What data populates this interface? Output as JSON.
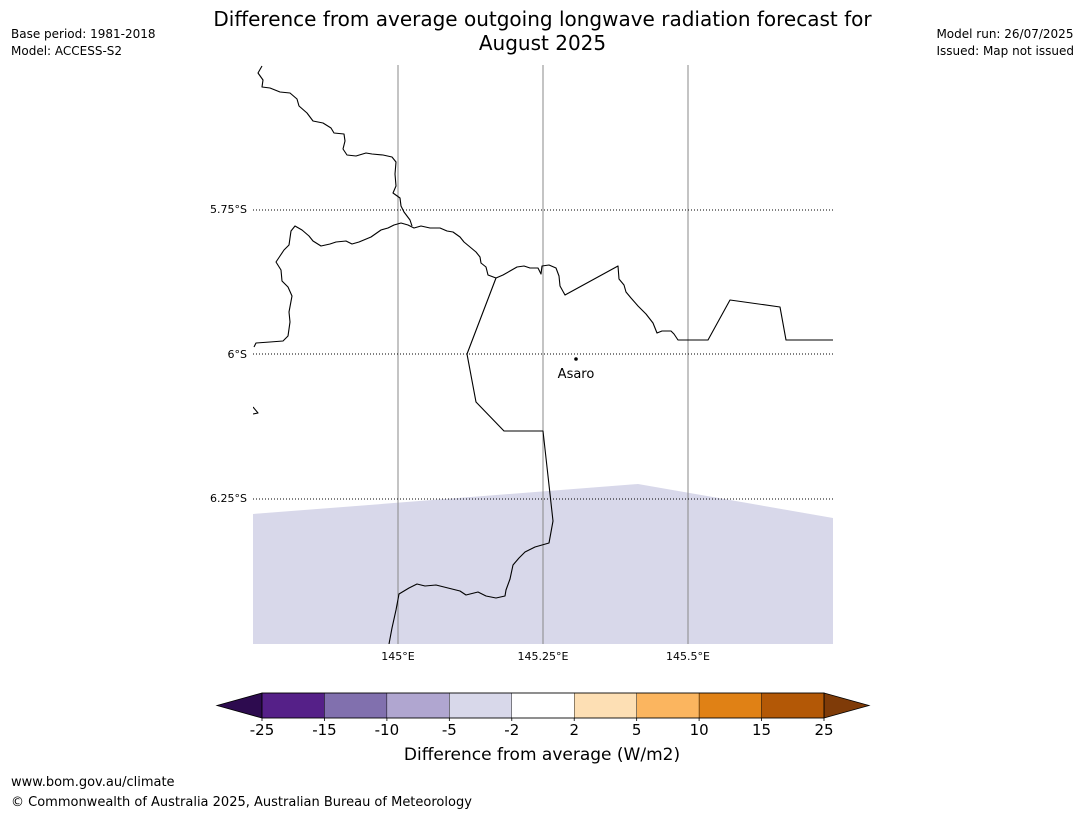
{
  "title_line1": "Difference from average outgoing longwave radiation forecast for",
  "title_line2": "August 2025",
  "meta_left": [
    "Base period: 1981-2018",
    "Model: ACCESS-S2"
  ],
  "meta_right": [
    "Model run: 26/07/2025",
    "Issued: Map not issued"
  ],
  "map": {
    "lat_labels": [
      "5.75°S",
      "6°S",
      "6.25°S"
    ],
    "lon_labels": [
      "145°E",
      "145.25°E",
      "145.5°E"
    ],
    "place": "Asaro",
    "anomaly_fill_color": "#d8d8ea",
    "anomaly_bin": "-5 to -2"
  },
  "colorbar": {
    "ticks": [
      "-25",
      "-15",
      "-10",
      "-5",
      "-2",
      "2",
      "5",
      "10",
      "15",
      "25"
    ],
    "colors": [
      "#552088",
      "#8170ae",
      "#b0a6d0",
      "#d8d8ea",
      "#ffffff",
      "#fddfb4",
      "#fbb55f",
      "#e08115",
      "#b35806"
    ],
    "under_color": "#2d0b4f",
    "over_color": "#7f3b08",
    "label": "Difference from average (W/m2)"
  },
  "footer": {
    "url": "www.bom.gov.au/climate",
    "copyright": "© Commonwealth of Australia 2025, Australian Bureau of Meteorology"
  }
}
